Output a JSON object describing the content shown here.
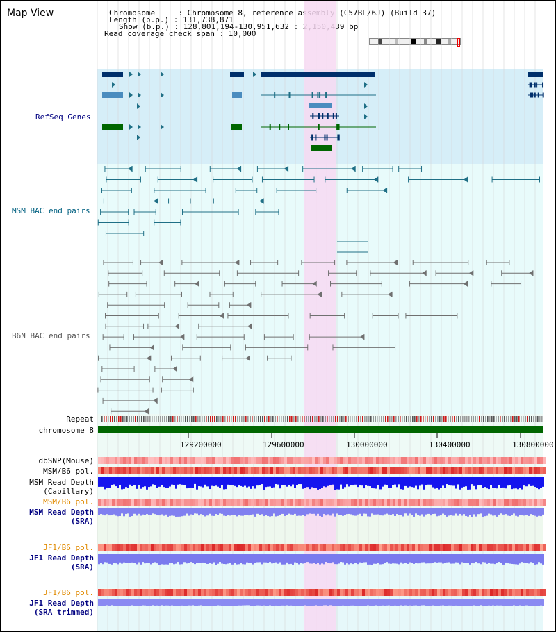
{
  "title": "Map View",
  "info": {
    "chromosome": "Chromosome     : Chromosome 8, reference assembly (C57BL/6J) (Build 37)",
    "length": "Length (b.p.) : 131,738,871",
    "show": "Show (b.p.) : 128,801,194-130,951,632 : 2,150,439 bp",
    "span": "Read coverage check span : 10,000"
  },
  "colors": {
    "refseq_bg": "#d6eef8",
    "bac_bg": "#e8fbfb",
    "highlight": "#f7d9f2",
    "navy": "#002f6b",
    "blue": "#4a8cbf",
    "green": "#006600",
    "teal": "#1f6f86",
    "gray": "#707070"
  },
  "tracks": {
    "refseq": "RefSeq Genes",
    "msm_bac": "MSM BAC end pairs",
    "b6n_bac": "B6N BAC end pairs",
    "repeat": "Repeat",
    "chromosome": "chromosome 8",
    "dbsnp": "dbSNP(Mouse)",
    "msm_b6_pol_1": "MSM/B6 pol.",
    "msm_read_depth_cap_1": "MSM Read Depth",
    "msm_read_depth_cap_2": "(Capillary)",
    "msm_b6_pol_2": "MSM/B6 pol.",
    "msm_read_depth_sra_1": "MSM Read Depth",
    "msm_read_depth_sra_2": "(SRA)",
    "jf1_b6_pol_1": "JF1/B6 pol.",
    "jf1_read_depth_sra_1": "JF1 Read Depth",
    "jf1_read_depth_sra_2": "(SRA)",
    "jf1_b6_pol_2": "JF1/B6 pol.",
    "jf1_read_depth_trim_1": "JF1 Read Depth",
    "jf1_read_depth_trim_2": "(SRA trimmed)"
  },
  "axis_ticks": [
    "129200000",
    "129600000",
    "130000000",
    "130400000",
    "130800000"
  ]
}
